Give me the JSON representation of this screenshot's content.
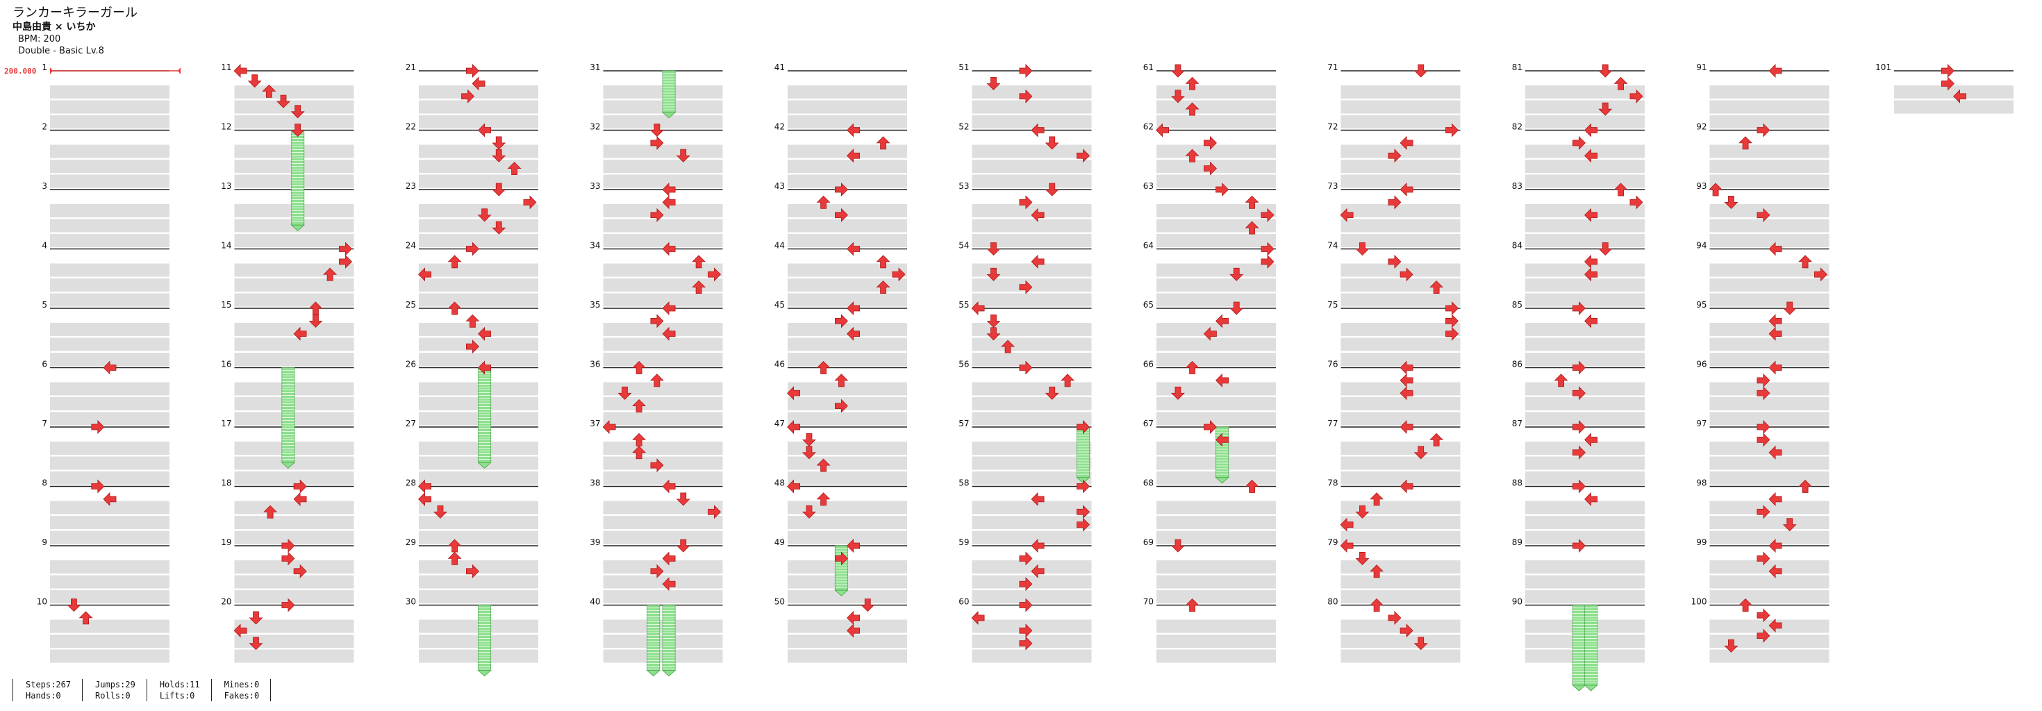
{
  "song": {
    "title": "ランカーキラーガール",
    "artist": "中島由貴 × いちか",
    "bpm": "BPM: 200",
    "difficulty": "Double - Basic Lv.8"
  },
  "bpm_marker": "200.000",
  "colors": {
    "arrow": "#e83a3a",
    "hold": "#8ee08e",
    "rowband": "#dedede"
  },
  "stats": [
    [
      "Steps:267",
      "Hands:0"
    ],
    [
      "Jumps:29",
      "Rolls:0"
    ],
    [
      "Holds:11",
      "Lifts:0"
    ],
    [
      "Mines:0",
      "Fakes:0"
    ]
  ],
  "measures": {
    "1": [],
    "2": [],
    "3": [],
    "4": [],
    "5": [],
    "6": [
      [
        0.5,
        "L"
      ]
    ],
    "7": [
      [
        0.4,
        "R"
      ]
    ],
    "8": [
      [
        0.4,
        "R"
      ],
      [
        0.5,
        "L"
      ]
    ],
    "9": [],
    "10": [
      [
        0.2,
        "D"
      ],
      [
        0.3,
        "U"
      ]
    ],
    "11": [
      [
        0.05,
        "L"
      ],
      [
        0.17,
        "D"
      ],
      [
        0.29,
        "U"
      ],
      [
        0.41,
        "D"
      ],
      [
        0.53,
        "D"
      ]
    ],
    "12": [
      [
        0.53,
        "D"
      ]
    ],
    "14": [
      [
        0.93,
        "R"
      ],
      [
        0.93,
        "R"
      ],
      [
        0.8,
        "U"
      ]
    ],
    "15": [
      [
        0.68,
        "U"
      ],
      [
        0.68,
        "D"
      ],
      [
        0.55,
        "L"
      ]
    ],
    "16": [],
    "17": [],
    "18": [
      [
        0.55,
        "R"
      ],
      [
        0.55,
        "L"
      ],
      [
        0.3,
        "U"
      ]
    ],
    "19": [
      [
        0.45,
        "R"
      ],
      [
        0.45,
        "R"
      ],
      [
        0.55,
        "R"
      ]
    ],
    "20": [
      [
        0.45,
        "R"
      ],
      [
        0.18,
        "D"
      ],
      [
        0.05,
        "L"
      ],
      [
        0.18,
        "D"
      ]
    ],
    "21": [
      [
        0.45,
        "R"
      ],
      [
        0.5,
        "L"
      ],
      [
        0.41,
        "R"
      ]
    ],
    "22": [
      [
        0.55,
        "L"
      ],
      [
        0.67,
        "D"
      ],
      [
        0.67,
        "D"
      ],
      [
        0.8,
        "U"
      ]
    ],
    "23": [
      [
        0.67,
        "D"
      ],
      [
        0.93,
        "R"
      ],
      [
        0.55,
        "D"
      ],
      [
        0.67,
        "D"
      ]
    ],
    "24": [
      [
        0.45,
        "R"
      ],
      [
        0.3,
        "U"
      ],
      [
        0.05,
        "L"
      ]
    ],
    "25": [
      [
        0.3,
        "U"
      ],
      [
        0.45,
        "U"
      ],
      [
        0.55,
        "L"
      ],
      [
        0.45,
        "R"
      ]
    ],
    "26": [
      [
        0.55,
        "L"
      ]
    ],
    "27": [],
    "28": [
      [
        0.05,
        "L"
      ],
      [
        0.05,
        "L"
      ],
      [
        0.18,
        "D"
      ]
    ],
    "29": [
      [
        0.3,
        "U"
      ],
      [
        0.3,
        "U"
      ],
      [
        0.45,
        "R"
      ]
    ],
    "30": [],
    "31": [],
    "32": [
      [
        0.45,
        "D"
      ],
      [
        0.45,
        "R"
      ],
      [
        0.67,
        "D"
      ]
    ],
    "33": [
      [
        0.55,
        "L"
      ],
      [
        0.55,
        "L"
      ],
      [
        0.45,
        "R"
      ]
    ],
    "34": [
      [
        0.55,
        "L"
      ],
      [
        0.8,
        "U"
      ],
      [
        0.93,
        "R"
      ],
      [
        0.8,
        "U"
      ]
    ],
    "35": [
      [
        0.55,
        "L"
      ],
      [
        0.45,
        "R"
      ],
      [
        0.55,
        "L"
      ]
    ],
    "36": [
      [
        0.3,
        "U"
      ],
      [
        0.45,
        "U"
      ],
      [
        0.18,
        "D"
      ],
      [
        0.3,
        "U"
      ]
    ],
    "37": [
      [
        0.05,
        "L"
      ],
      [
        0.3,
        "U"
      ],
      [
        0.3,
        "U"
      ],
      [
        0.45,
        "R"
      ]
    ],
    "38": [
      [
        0.55,
        "L"
      ],
      [
        0.67,
        "D"
      ],
      [
        0.93,
        "R"
      ]
    ],
    "39": [
      [
        0.67,
        "D"
      ],
      [
        0.55,
        "L"
      ],
      [
        0.45,
        "R"
      ],
      [
        0.55,
        "L"
      ]
    ],
    "40": [],
    "41": [],
    "42": [
      [
        0.55,
        "L"
      ],
      [
        0.8,
        "U"
      ],
      [
        0.55,
        "L"
      ]
    ],
    "43": [
      [
        0.45,
        "R"
      ],
      [
        0.3,
        "U"
      ],
      [
        0.45,
        "R"
      ]
    ],
    "44": [
      [
        0.55,
        "L"
      ],
      [
        0.8,
        "U"
      ],
      [
        0.93,
        "R"
      ],
      [
        0.8,
        "U"
      ]
    ],
    "45": [
      [
        0.55,
        "L"
      ],
      [
        0.45,
        "R"
      ],
      [
        0.55,
        "L"
      ]
    ],
    "46": [
      [
        0.3,
        "U"
      ],
      [
        0.45,
        "U"
      ],
      [
        0.05,
        "L"
      ],
      [
        0.45,
        "R"
      ]
    ],
    "47": [
      [
        0.05,
        "L"
      ],
      [
        0.18,
        "D"
      ],
      [
        0.18,
        "D"
      ],
      [
        0.3,
        "U"
      ]
    ],
    "48": [
      [
        0.05,
        "L"
      ],
      [
        0.3,
        "U"
      ],
      [
        0.18,
        "D"
      ]
    ],
    "49": [
      [
        0.55,
        "L"
      ],
      [
        0.45,
        "R"
      ]
    ],
    "50": [
      [
        0.67,
        "D"
      ],
      [
        0.55,
        "L"
      ],
      [
        0.55,
        "L"
      ]
    ],
    "51": [
      [
        0.45,
        "R"
      ],
      [
        0.18,
        "D"
      ],
      [
        0.45,
        "R"
      ]
    ],
    "52": [
      [
        0.55,
        "L"
      ],
      [
        0.67,
        "D"
      ],
      [
        0.93,
        "R"
      ]
    ],
    "53": [
      [
        0.67,
        "D"
      ],
      [
        0.45,
        "R"
      ],
      [
        0.55,
        "L"
      ]
    ],
    "54": [
      [
        0.18,
        "D"
      ],
      [
        0.55,
        "L"
      ],
      [
        0.18,
        "D"
      ],
      [
        0.45,
        "R"
      ]
    ],
    "55": [
      [
        0.05,
        "L"
      ],
      [
        0.18,
        "D"
      ],
      [
        0.18,
        "D"
      ],
      [
        0.3,
        "U"
      ]
    ],
    "56": [
      [
        0.45,
        "R"
      ],
      [
        0.8,
        "U"
      ],
      [
        0.67,
        "D"
      ]
    ],
    "57": [
      [
        0.93,
        "R"
      ]
    ],
    "58": [
      [
        0.93,
        "R"
      ],
      [
        0.55,
        "L"
      ],
      [
        0.93,
        "R"
      ],
      [
        0.93,
        "R"
      ]
    ],
    "59": [
      [
        0.55,
        "L"
      ],
      [
        0.45,
        "R"
      ],
      [
        0.55,
        "L"
      ],
      [
        0.45,
        "R"
      ]
    ],
    "60": [
      [
        0.45,
        "R"
      ],
      [
        0.05,
        "L"
      ],
      [
        0.45,
        "R"
      ],
      [
        0.45,
        "R"
      ]
    ],
    "61": [
      [
        0.18,
        "D"
      ],
      [
        0.3,
        "U"
      ],
      [
        0.18,
        "D"
      ],
      [
        0.3,
        "U"
      ]
    ],
    "62": [
      [
        0.05,
        "L"
      ],
      [
        0.45,
        "R"
      ],
      [
        0.3,
        "U"
      ],
      [
        0.45,
        "R"
      ]
    ],
    "63": [
      [
        0.55,
        "R"
      ],
      [
        0.8,
        "U"
      ],
      [
        0.93,
        "R"
      ],
      [
        0.8,
        "U"
      ]
    ],
    "64": [
      [
        0.93,
        "R"
      ],
      [
        0.93,
        "R"
      ],
      [
        0.67,
        "D"
      ]
    ],
    "65": [
      [
        0.67,
        "D"
      ],
      [
        0.55,
        "L"
      ],
      [
        0.45,
        "L"
      ]
    ],
    "66": [
      [
        0.3,
        "U"
      ],
      [
        0.55,
        "L"
      ],
      [
        0.18,
        "D"
      ]
    ],
    "67": [
      [
        0.45,
        "R"
      ],
      [
        0.55,
        "L"
      ]
    ],
    "68": [
      [
        0.8,
        "U"
      ]
    ],
    "69": [
      [
        0.18,
        "D"
      ]
    ],
    "70": [
      [
        0.3,
        "U"
      ]
    ],
    "71": [
      [
        0.67,
        "D"
      ]
    ],
    "72": [
      [
        0.93,
        "R"
      ],
      [
        0.55,
        "L"
      ],
      [
        0.45,
        "R"
      ]
    ],
    "73": [
      [
        0.55,
        "L"
      ],
      [
        0.45,
        "R"
      ],
      [
        0.05,
        "L"
      ]
    ],
    "74": [
      [
        0.18,
        "D"
      ],
      [
        0.45,
        "R"
      ],
      [
        0.55,
        "R"
      ],
      [
        0.8,
        "U"
      ]
    ],
    "75": [
      [
        0.93,
        "R"
      ],
      [
        0.93,
        "R"
      ],
      [
        0.93,
        "R"
      ]
    ],
    "76": [
      [
        0.55,
        "L"
      ],
      [
        0.55,
        "L"
      ],
      [
        0.55,
        "L"
      ]
    ],
    "77": [
      [
        0.55,
        "L"
      ],
      [
        0.8,
        "U"
      ],
      [
        0.67,
        "D"
      ]
    ],
    "78": [
      [
        0.55,
        "L"
      ],
      [
        0.3,
        "U"
      ],
      [
        0.18,
        "D"
      ],
      [
        0.05,
        "L"
      ]
    ],
    "79": [
      [
        0.05,
        "L"
      ],
      [
        0.18,
        "D"
      ],
      [
        0.3,
        "U"
      ]
    ],
    "80": [
      [
        0.3,
        "U"
      ],
      [
        0.45,
        "R"
      ],
      [
        0.55,
        "R"
      ],
      [
        0.67,
        "D"
      ]
    ],
    "81": [
      [
        0.67,
        "D"
      ],
      [
        0.8,
        "U"
      ],
      [
        0.93,
        "R"
      ],
      [
        0.67,
        "D"
      ]
    ],
    "82": [
      [
        0.55,
        "L"
      ],
      [
        0.45,
        "R"
      ],
      [
        0.55,
        "L"
      ]
    ],
    "83": [
      [
        0.8,
        "U"
      ],
      [
        0.93,
        "R"
      ],
      [
        0.55,
        "L"
      ]
    ],
    "84": [
      [
        0.67,
        "D"
      ],
      [
        0.55,
        "L"
      ],
      [
        0.55,
        "L"
      ]
    ],
    "85": [
      [
        0.45,
        "R"
      ],
      [
        0.55,
        "L"
      ]
    ],
    "86": [
      [
        0.45,
        "R"
      ],
      [
        0.3,
        "U"
      ],
      [
        0.45,
        "R"
      ]
    ],
    "87": [
      [
        0.45,
        "R"
      ],
      [
        0.55,
        "L"
      ],
      [
        0.45,
        "R"
      ]
    ],
    "88": [
      [
        0.45,
        "R"
      ],
      [
        0.55,
        "L"
      ]
    ],
    "89": [
      [
        0.45,
        "R"
      ]
    ],
    "90": [],
    "91": [
      [
        0.55,
        "L"
      ]
    ],
    "92": [
      [
        0.45,
        "R"
      ],
      [
        0.3,
        "U"
      ]
    ],
    "93": [
      [
        0.05,
        "U"
      ],
      [
        0.18,
        "D"
      ],
      [
        0.45,
        "R"
      ]
    ],
    "94": [
      [
        0.55,
        "L"
      ],
      [
        0.8,
        "U"
      ],
      [
        0.93,
        "R"
      ]
    ],
    "95": [
      [
        0.67,
        "D"
      ],
      [
        0.55,
        "L"
      ],
      [
        0.55,
        "L"
      ]
    ],
    "96": [
      [
        0.55,
        "L"
      ],
      [
        0.45,
        "R"
      ],
      [
        0.45,
        "R"
      ]
    ],
    "97": [
      [
        0.45,
        "R"
      ],
      [
        0.45,
        "R"
      ],
      [
        0.55,
        "L"
      ]
    ],
    "98": [
      [
        0.8,
        "U"
      ],
      [
        0.55,
        "L"
      ],
      [
        0.45,
        "R"
      ],
      [
        0.67,
        "D"
      ]
    ],
    "99": [
      [
        0.55,
        "L"
      ],
      [
        0.45,
        "R"
      ],
      [
        0.55,
        "L"
      ]
    ],
    "100": [
      [
        0.3,
        "U"
      ],
      [
        0.45,
        "R"
      ],
      [
        0.55,
        "L"
      ],
      [
        0.45,
        "R"
      ],
      [
        0.18,
        "D"
      ]
    ],
    "101": [
      [
        0.45,
        "R"
      ],
      [
        0.45,
        "R"
      ],
      [
        0.55,
        "L"
      ]
    ]
  },
  "holds": [
    {
      "measure": 12,
      "lane": 0.53,
      "span": 1.6
    },
    {
      "measure": 16,
      "lane": 0.45,
      "span": 1.6
    },
    {
      "measure": 26,
      "lane": 0.55,
      "span": 1.6
    },
    {
      "measure": 30,
      "lane": 0.55,
      "span": 1.1
    },
    {
      "measure": 31,
      "lane": 0.55,
      "span": 0.7
    },
    {
      "measure": 40,
      "lane": 0.42,
      "span": 1.1
    },
    {
      "measure": 40,
      "lane": 0.55,
      "span": 1.1
    },
    {
      "measure": 49,
      "lane": 0.45,
      "span": 0.75
    },
    {
      "measure": 57,
      "lane": 0.93,
      "span": 0.85
    },
    {
      "measure": 67,
      "lane": 0.55,
      "span": 0.85
    },
    {
      "measure": 90,
      "lane": 0.45,
      "span": 1.35
    },
    {
      "measure": 90,
      "lane": 0.55,
      "span": 1.35
    }
  ]
}
